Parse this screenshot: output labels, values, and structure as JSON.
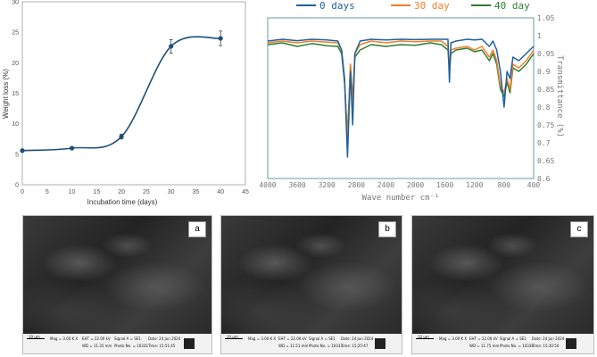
{
  "chart_data": [
    {
      "type": "line",
      "xlabel": "Incubation time (days)",
      "ylabel": "Weight loss (%)",
      "xlim": [
        0,
        45
      ],
      "ylim": [
        0,
        30
      ],
      "xticks": [
        "0",
        "5",
        "10",
        "15",
        "20",
        "25",
        "30",
        "35",
        "40",
        "45"
      ],
      "yticks": [
        "0",
        "5",
        "10",
        "15",
        "20",
        "25",
        "30"
      ],
      "x": [
        0,
        10,
        20,
        30,
        40
      ],
      "y": [
        5.6,
        6.0,
        7.9,
        22.7,
        24.0
      ],
      "error": [
        0.2,
        0.2,
        0.4,
        1.1,
        1.2
      ],
      "grid": false,
      "color": "#1f4e79"
    },
    {
      "type": "line",
      "xlabel": "Wave number cm⁻¹",
      "ylabel": "Transmittance (%)",
      "xlim": [
        4000,
        400
      ],
      "ylim": [
        0.6,
        1.05
      ],
      "xticks": [
        "4000",
        "3600",
        "3200",
        "2800",
        "2400",
        "2000",
        "1600",
        "1200",
        "800",
        "400"
      ],
      "yticks": [
        "0.6",
        "0.65",
        "0.7",
        "0.75",
        "0.8",
        "0.85",
        "0.9",
        "0.95",
        "1",
        "1.05"
      ],
      "legend": "top",
      "series": [
        {
          "name": "0 days",
          "color": "#1f5f9f",
          "x": [
            4000,
            3800,
            3600,
            3400,
            3200,
            3050,
            3000,
            2960,
            2920,
            2880,
            2850,
            2820,
            2750,
            2600,
            2400,
            2200,
            2000,
            1800,
            1650,
            1560,
            1540,
            1520,
            1450,
            1300,
            1200,
            1100,
            1000,
            950,
            900,
            850,
            800,
            760,
            720,
            680,
            600,
            500,
            400
          ],
          "y": [
            0.985,
            0.99,
            0.986,
            0.99,
            0.988,
            0.985,
            0.96,
            0.88,
            0.66,
            0.9,
            0.75,
            0.95,
            0.985,
            0.99,
            0.988,
            0.99,
            0.989,
            0.99,
            0.99,
            0.99,
            0.87,
            0.98,
            0.985,
            0.99,
            0.988,
            0.99,
            0.97,
            0.985,
            0.96,
            0.9,
            0.8,
            0.9,
            0.88,
            0.94,
            0.93,
            0.95,
            0.97
          ]
        },
        {
          "name": "30 day",
          "color": "#f07f26",
          "x": [
            4000,
            3800,
            3600,
            3400,
            3200,
            3050,
            3000,
            2960,
            2920,
            2880,
            2850,
            2820,
            2750,
            2600,
            2400,
            2200,
            2000,
            1800,
            1650,
            1560,
            1540,
            1520,
            1450,
            1300,
            1200,
            1100,
            1000,
            950,
            900,
            850,
            800,
            760,
            720,
            680,
            600,
            500,
            400
          ],
          "y": [
            0.98,
            0.985,
            0.98,
            0.985,
            0.982,
            0.98,
            0.96,
            0.88,
            0.7,
            0.92,
            0.8,
            0.95,
            0.975,
            0.985,
            0.98,
            0.985,
            0.983,
            0.985,
            0.985,
            0.97,
            0.91,
            0.96,
            0.965,
            0.97,
            0.96,
            0.97,
            0.94,
            0.96,
            0.93,
            0.86,
            0.84,
            0.88,
            0.85,
            0.92,
            0.91,
            0.93,
            0.96
          ]
        },
        {
          "name": "40 day",
          "color": "#2e7d32",
          "x": [
            4000,
            3800,
            3600,
            3400,
            3200,
            3050,
            3000,
            2960,
            2920,
            2880,
            2850,
            2820,
            2750,
            2600,
            2400,
            2200,
            2000,
            1800,
            1650,
            1560,
            1540,
            1520,
            1450,
            1300,
            1200,
            1100,
            1000,
            950,
            900,
            850,
            800,
            760,
            720,
            680,
            600,
            500,
            400
          ],
          "y": [
            0.975,
            0.98,
            0.97,
            0.978,
            0.972,
            0.97,
            0.95,
            0.87,
            0.72,
            0.92,
            0.82,
            0.94,
            0.96,
            0.975,
            0.97,
            0.975,
            0.973,
            0.98,
            0.975,
            0.96,
            0.9,
            0.95,
            0.96,
            0.965,
            0.955,
            0.96,
            0.93,
            0.95,
            0.92,
            0.85,
            0.83,
            0.87,
            0.84,
            0.91,
            0.9,
            0.92,
            0.95
          ]
        }
      ]
    }
  ],
  "sem_panels": [
    {
      "label": "a",
      "scale": "10 µm",
      "mag": "Mag = 3.00 K X",
      "eht": "EHT = 22.00 kV",
      "wd": "WD = 11.35 mm",
      "signal": "Signal A = SE1",
      "photo": "Photo No. = 10331",
      "date": "Date: 24 Jun 2024",
      "time": "Time: 15:51:45"
    },
    {
      "label": "b",
      "scale": "10 µm",
      "mag": "Mag = 3.00 K X",
      "eht": "EHT = 22.00 kV",
      "wd": "WD = 11.51 mm",
      "signal": "Signal A = SE1",
      "photo": "Photo No. = 10333",
      "date": "Date: 24 Jun 2024",
      "time": "Time: 15:25:47"
    },
    {
      "label": "c",
      "scale": "10 µm",
      "mag": "Mag = 3.00 K X",
      "eht": "EHT = 22.00 kV",
      "wd": "WD = 11.75 mm",
      "signal": "Signal A = SE1",
      "photo": "Photo No. = 10338",
      "date": "Date: 24 Jun 2024",
      "time": "Time: 15:30:50"
    }
  ]
}
